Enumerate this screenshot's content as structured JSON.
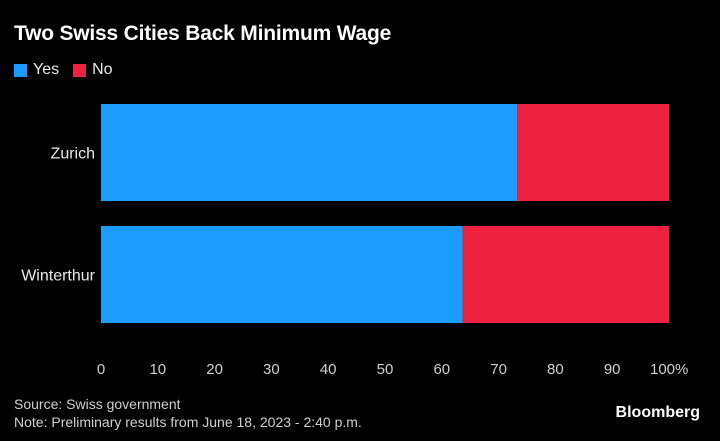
{
  "title": "Two Swiss Cities Back Minimum Wage",
  "legend": [
    {
      "label": "Yes",
      "color": "#1d9cff"
    },
    {
      "label": "No",
      "color": "#ee2240"
    }
  ],
  "chart_data": {
    "type": "bar",
    "orientation": "horizontal",
    "stacked": true,
    "categories": [
      "Zurich",
      "Winterthur"
    ],
    "series": [
      {
        "name": "Yes",
        "color": "#1d9cff",
        "values": [
          73.3,
          63.7
        ]
      },
      {
        "name": "No",
        "color": "#ee2240",
        "values": [
          26.7,
          36.3
        ]
      }
    ],
    "xlim": [
      0,
      100
    ],
    "xticks": [
      "0",
      "10",
      "20",
      "30",
      "40",
      "50",
      "60",
      "70",
      "80",
      "90",
      "100%"
    ],
    "grid": false,
    "legend_position": "top-left"
  },
  "footer": {
    "source": "Source: Swiss government",
    "note": "Note: Preliminary results from June 18, 2023 - 2:40 p.m."
  },
  "brand": "Bloomberg"
}
